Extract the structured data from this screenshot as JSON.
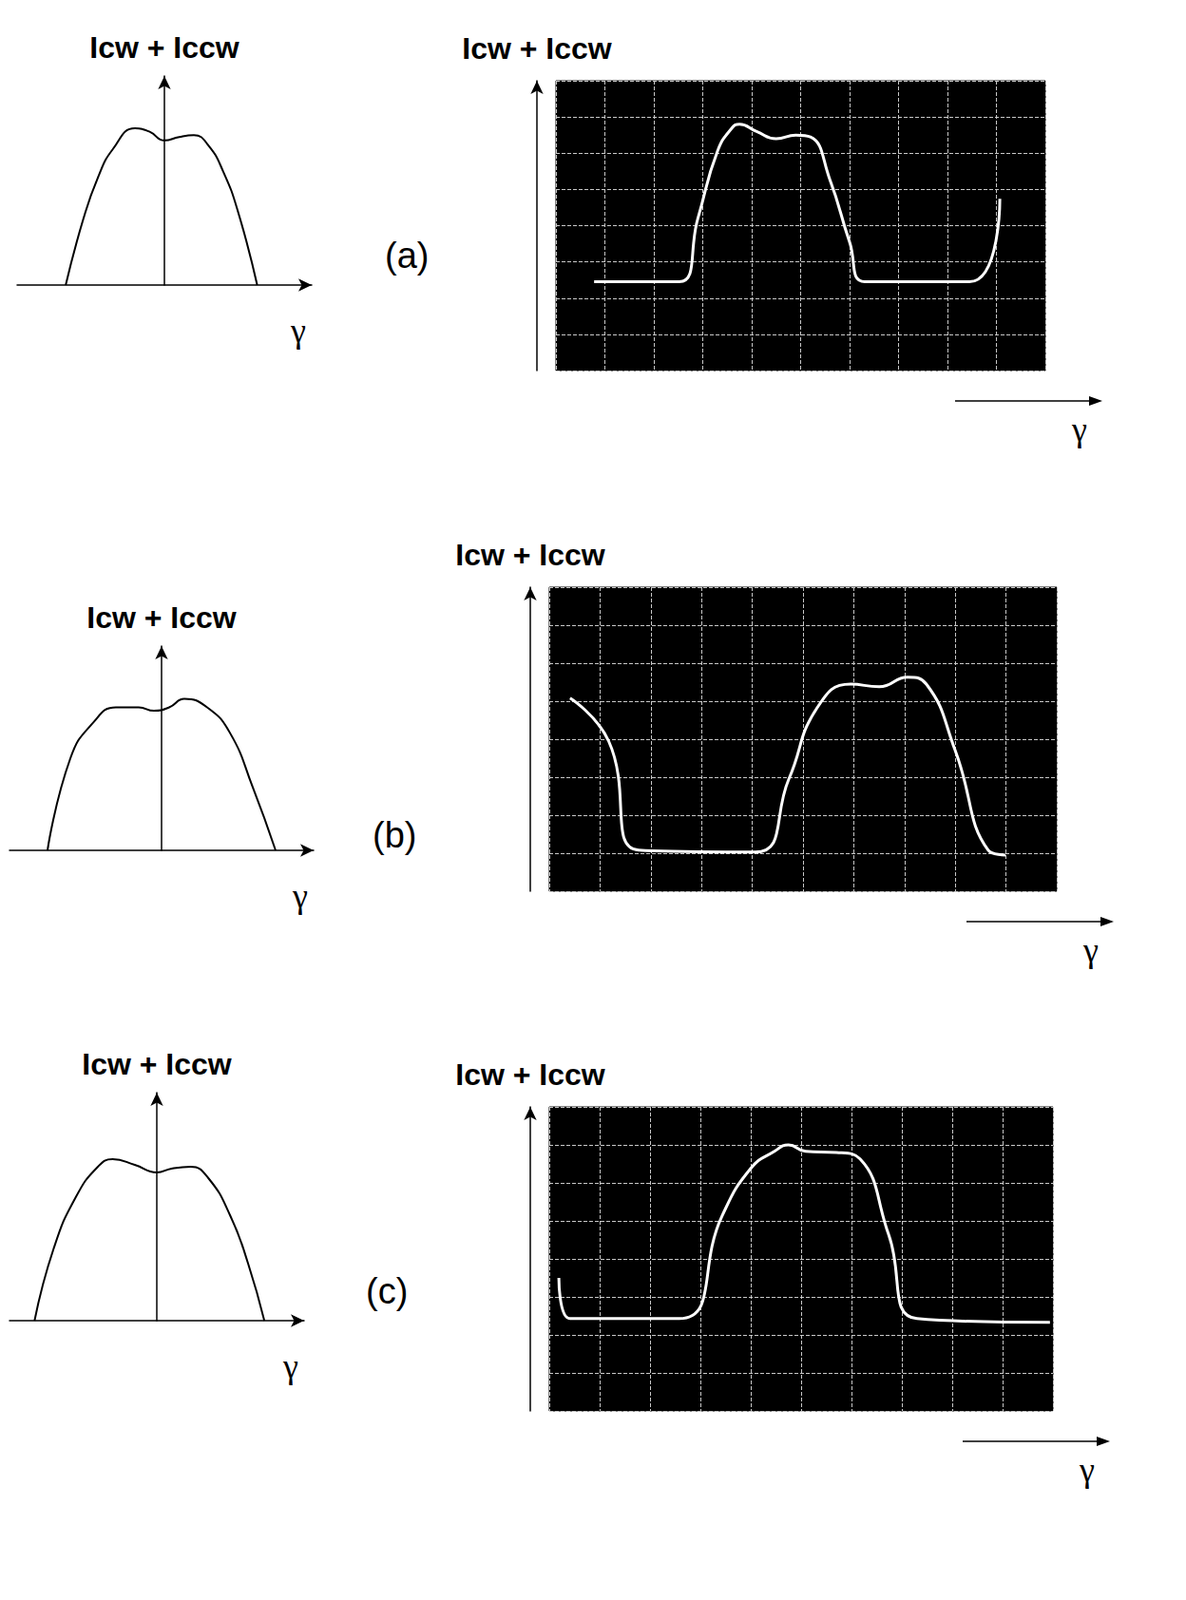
{
  "chart_data": [
    {
      "type": "line",
      "ylabel": "Icw + Iccw",
      "xlabel": "γ",
      "annotations": [
        "(a)"
      ],
      "xlim": [
        -1,
        1
      ],
      "ylim": [
        0,
        1.2
      ],
      "tick_labels": false,
      "grid": false,
      "color": "#000000",
      "x": [
        -0.67,
        -0.55,
        -0.45,
        -0.35,
        -0.2,
        -0.1,
        0,
        0.1,
        0.2,
        0.3,
        0.4,
        0.5,
        0.63
      ],
      "values": [
        0,
        0.38,
        0.62,
        0.78,
        0.9,
        0.88,
        0.83,
        0.85,
        0.86,
        0.8,
        0.65,
        0.42,
        0
      ]
    },
    {
      "type": "line",
      "ylabel": "Icw + Iccw",
      "xlabel": "γ",
      "xlim": [
        0,
        10
      ],
      "ylim": [
        0,
        8
      ],
      "xticks": [
        0,
        1,
        2,
        3,
        4,
        5,
        6,
        7,
        8,
        9,
        10
      ],
      "yticks": [
        0,
        1,
        2,
        3,
        4,
        5,
        6,
        7,
        8
      ],
      "tick_labels": false,
      "grid": true,
      "color": "#ffffff",
      "x": [
        0.78,
        2.52,
        2.9,
        3.3,
        3.6,
        3.75,
        4.1,
        4.5,
        4.9,
        5.2,
        5.6,
        6.0,
        6.31,
        8.45,
        9.07
      ],
      "values": [
        2.45,
        2.45,
        4.2,
        6.05,
        6.7,
        6.8,
        6.6,
        6.4,
        6.5,
        6.45,
        5.26,
        3.55,
        2.45,
        2.45,
        4.74
      ]
    },
    {
      "type": "line",
      "ylabel": "Icw + Iccw",
      "xlabel": "γ",
      "annotations": [
        "(b)"
      ],
      "xlim": [
        -1,
        1
      ],
      "ylim": [
        0,
        1.2
      ],
      "tick_labels": false,
      "grid": false,
      "color": "#000000",
      "x": [
        -0.75,
        -0.6,
        -0.45,
        -0.3,
        -0.15,
        -0.05,
        0.05,
        0.15,
        0.3,
        0.45,
        0.6,
        0.75
      ],
      "values": [
        0,
        0.54,
        0.75,
        0.84,
        0.84,
        0.82,
        0.84,
        0.89,
        0.84,
        0.69,
        0.37,
        0
      ]
    },
    {
      "type": "line",
      "ylabel": "Icw + Iccw",
      "xlabel": "γ",
      "xlim": [
        0,
        10
      ],
      "ylim": [
        0,
        8
      ],
      "xticks": [
        0,
        1,
        2,
        3,
        4,
        5,
        6,
        7,
        8,
        9,
        10
      ],
      "yticks": [
        0,
        1,
        2,
        3,
        4,
        5,
        6,
        7,
        8
      ],
      "tick_labels": false,
      "grid": true,
      "color": "#ffffff",
      "x": [
        0.41,
        1.17,
        1.76,
        4.06,
        4.72,
        5.28,
        5.94,
        6.5,
        7.06,
        7.43,
        8.0,
        8.65,
        8.99
      ],
      "values": [
        5.08,
        3.95,
        1.08,
        1.03,
        2.95,
        4.83,
        5.45,
        5.38,
        5.63,
        5.45,
        3.7,
        1.08,
        0.95
      ]
    },
    {
      "type": "line",
      "ylabel": "Icw + Iccw",
      "xlabel": "γ",
      "annotations": [
        "(c)"
      ],
      "xlim": [
        -1,
        1
      ],
      "ylim": [
        0,
        1.2
      ],
      "tick_labels": false,
      "grid": false,
      "color": "#000000",
      "x": [
        -0.83,
        -0.7,
        -0.55,
        -0.4,
        -0.3,
        -0.15,
        0,
        0.1,
        0.23,
        0.35,
        0.5,
        0.62,
        0.73
      ],
      "values": [
        0,
        0.38,
        0.65,
        0.81,
        0.85,
        0.82,
        0.78,
        0.8,
        0.81,
        0.75,
        0.55,
        0.3,
        0
      ]
    },
    {
      "type": "line",
      "ylabel": "Icw + Iccw",
      "xlabel": "γ",
      "xlim": [
        0,
        10
      ],
      "ylim": [
        0,
        8
      ],
      "xticks": [
        0,
        1,
        2,
        3,
        4,
        5,
        6,
        7,
        8,
        9,
        10
      ],
      "yticks": [
        0,
        1,
        2,
        3,
        4,
        5,
        6,
        7,
        8
      ],
      "tick_labels": false,
      "grid": true,
      "color": "#ffffff",
      "x": [
        0.19,
        0.41,
        2.58,
        3.43,
        4.0,
        4.47,
        4.75,
        5.09,
        5.7,
        6.17,
        6.74,
        7.3,
        9.94
      ],
      "values": [
        3.5,
        2.43,
        2.43,
        5.13,
        6.38,
        6.83,
        7.0,
        6.83,
        6.8,
        6.63,
        4.63,
        2.43,
        2.33
      ]
    }
  ]
}
